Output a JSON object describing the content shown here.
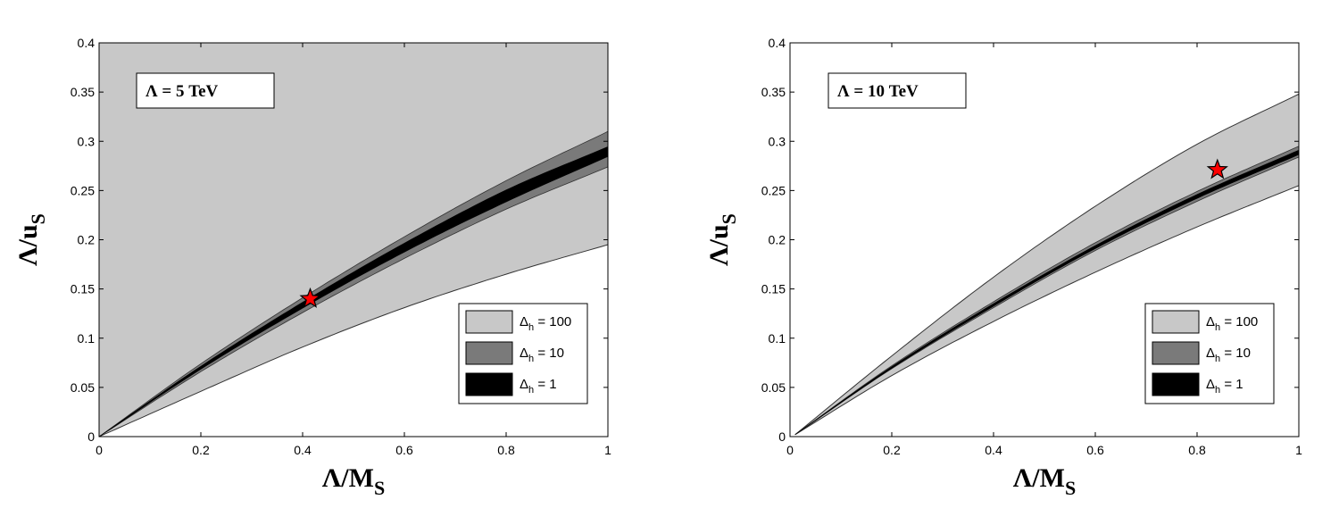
{
  "chart_data": [
    {
      "type": "area",
      "annotation": "Λ = 5 TeV",
      "xlabel": "Λ/M",
      "xlabel_subscript": "S",
      "ylabel": "Λ/u",
      "ylabel_subscript": "S",
      "xlim": [
        0,
        1
      ],
      "ylim": [
        0,
        0.4
      ],
      "xticks": [
        "0",
        "0.2",
        "0.4",
        "0.6",
        "0.8",
        "1"
      ],
      "yticks": [
        "0",
        "0.05",
        "0.1",
        "0.15",
        "0.2",
        "0.25",
        "0.3",
        "0.35",
        "0.4"
      ],
      "grid": false,
      "legend_position": "lower-right",
      "bands": [
        {
          "name": "Δh = 100",
          "legend_symbol": "Δ",
          "legend_subscript": "h",
          "legend_value": "= 100",
          "color": "#c8c8c8",
          "x": [
            0,
            0.2,
            0.4,
            0.6,
            0.8,
            1.0
          ],
          "upper": [
            0.4,
            0.4,
            0.4,
            0.4,
            0.4,
            0.4
          ],
          "lower": [
            0,
            0.046,
            0.091,
            0.131,
            0.165,
            0.195
          ]
        },
        {
          "name": "Δh = 10",
          "legend_symbol": "Δ",
          "legend_subscript": "h",
          "legend_value": "= 10",
          "color": "#7a7a7a",
          "x": [
            0,
            0.2,
            0.4,
            0.6,
            0.8,
            1.0
          ],
          "upper": [
            0,
            0.074,
            0.141,
            0.203,
            0.26,
            0.31
          ],
          "lower": [
            0,
            0.066,
            0.126,
            0.181,
            0.231,
            0.274
          ]
        },
        {
          "name": "Δh = 1",
          "legend_symbol": "Δ",
          "legend_subscript": "h",
          "legend_value": "= 1",
          "color": "#000000",
          "x": [
            0,
            0.2,
            0.4,
            0.6,
            0.8,
            1.0
          ],
          "upper": [
            0,
            0.0715,
            0.1365,
            0.1965,
            0.2505,
            0.2945
          ],
          "lower": [
            0,
            0.0685,
            0.1305,
            0.1875,
            0.2385,
            0.2845
          ]
        }
      ],
      "marker": {
        "symbol": "star",
        "x": 0.415,
        "y": 0.14,
        "color": "#ff0000"
      }
    },
    {
      "type": "area",
      "annotation": "Λ = 10 TeV",
      "xlabel": "Λ/M",
      "xlabel_subscript": "S",
      "ylabel": "Λ/u",
      "ylabel_subscript": "S",
      "xlim": [
        0,
        1
      ],
      "ylim": [
        0,
        0.4
      ],
      "xticks": [
        "0",
        "0.2",
        "0.4",
        "0.6",
        "0.8",
        "1"
      ],
      "yticks": [
        "0",
        "0.05",
        "0.1",
        "0.15",
        "0.2",
        "0.25",
        "0.3",
        "0.35",
        "0.4"
      ],
      "grid": false,
      "legend_position": "lower-right",
      "bands": [
        {
          "name": "Δh = 100",
          "legend_symbol": "Δ",
          "legend_subscript": "h",
          "legend_value": "= 100",
          "color": "#c8c8c8",
          "x": [
            0.01,
            0.2,
            0.4,
            0.6,
            0.8,
            1.0
          ],
          "upper": [
            0.002,
            0.082,
            0.162,
            0.234,
            0.297,
            0.348
          ],
          "lower": [
            0.002,
            0.062,
            0.117,
            0.167,
            0.213,
            0.255
          ]
        },
        {
          "name": "Δh = 10",
          "legend_symbol": "Δ",
          "legend_subscript": "h",
          "legend_value": "= 10",
          "color": "#7a7a7a",
          "x": [
            0.01,
            0.2,
            0.4,
            0.6,
            0.8,
            1.0
          ],
          "upper": [
            0.002,
            0.072,
            0.137,
            0.197,
            0.249,
            0.295
          ],
          "lower": [
            0.002,
            0.069,
            0.131,
            0.189,
            0.239,
            0.284
          ]
        },
        {
          "name": "Δh = 1",
          "legend_symbol": "Δ",
          "legend_subscript": "h",
          "legend_value": "= 1",
          "color": "#000000",
          "x": [
            0.01,
            0.2,
            0.4,
            0.6,
            0.8,
            1.0
          ],
          "upper": [
            0.002,
            0.071,
            0.135,
            0.194,
            0.246,
            0.291
          ],
          "lower": [
            0.002,
            0.0695,
            0.1325,
            0.191,
            0.242,
            0.2865
          ]
        }
      ],
      "marker": {
        "symbol": "star",
        "x": 0.84,
        "y": 0.271,
        "color": "#ff0000"
      }
    }
  ]
}
